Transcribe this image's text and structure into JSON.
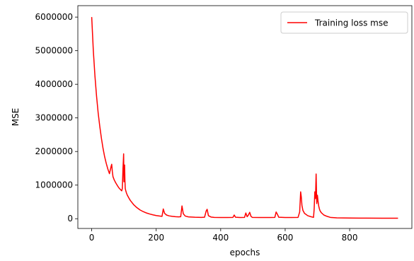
{
  "chart_data": {
    "type": "line",
    "title": "",
    "xlabel": "epochs",
    "ylabel": "MSE",
    "xlim": [
      -43,
      993
    ],
    "ylim": [
      -290000,
      6340000
    ],
    "grid": false,
    "legend": {
      "placement": "top-right",
      "entries": [
        "Training loss mse"
      ]
    },
    "x_ticks": [
      0,
      200,
      400,
      600,
      800
    ],
    "x_tick_labels": [
      "0",
      "200",
      "400",
      "600",
      "800"
    ],
    "y_ticks": [
      0,
      1000000,
      2000000,
      3000000,
      4000000,
      5000000,
      6000000
    ],
    "y_tick_labels": [
      "0",
      "1000000",
      "2000000",
      "3000000",
      "4000000",
      "5000000",
      "6000000"
    ],
    "series": [
      {
        "name": "Training loss mse",
        "color": "#ff0000",
        "x": [
          0,
          5,
          10,
          15,
          20,
          25,
          30,
          35,
          40,
          45,
          50,
          55,
          60,
          62,
          64,
          66,
          70,
          75,
          80,
          85,
          90,
          93,
          95,
          97,
          98,
          99,
          100,
          101,
          102,
          103,
          104,
          106,
          108,
          110,
          115,
          120,
          130,
          140,
          150,
          160,
          170,
          180,
          190,
          200,
          210,
          218,
          222,
          226,
          232,
          240,
          250,
          260,
          270,
          276,
          280,
          284,
          290,
          300,
          320,
          340,
          350,
          355,
          358,
          362,
          370,
          380,
          400,
          420,
          438,
          442,
          446,
          460,
          474,
          478,
          482,
          486,
          490,
          494,
          498,
          520,
          550,
          568,
          572,
          576,
          580,
          600,
          620,
          640,
          645,
          648,
          650,
          652,
          655,
          660,
          670,
          680,
          688,
          690,
          692,
          694,
          696,
          698,
          700,
          702,
          704,
          706,
          708,
          712,
          720,
          730,
          740,
          760,
          800,
          850,
          900,
          950
        ],
        "y": [
          6000000,
          5000000,
          4250000,
          3650000,
          3150000,
          2750000,
          2400000,
          2100000,
          1850000,
          1650000,
          1480000,
          1340000,
          1550000,
          1620000,
          1400000,
          1250000,
          1150000,
          1060000,
          980000,
          910000,
          860000,
          830000,
          900000,
          1500000,
          1700000,
          1930000,
          1100000,
          1450000,
          1600000,
          1150000,
          900000,
          820000,
          760000,
          710000,
          620000,
          540000,
          420000,
          330000,
          260000,
          210000,
          170000,
          140000,
          115000,
          95000,
          80000,
          70000,
          290000,
          160000,
          110000,
          85000,
          70000,
          60000,
          55000,
          60000,
          380000,
          150000,
          80000,
          55000,
          45000,
          40000,
          45000,
          230000,
          280000,
          90000,
          50000,
          40000,
          35000,
          35000,
          40000,
          110000,
          45000,
          35000,
          40000,
          170000,
          60000,
          110000,
          190000,
          70000,
          40000,
          35000,
          35000,
          40000,
          200000,
          130000,
          45000,
          35000,
          35000,
          40000,
          200000,
          800000,
          650000,
          400000,
          250000,
          160000,
          90000,
          60000,
          40000,
          300000,
          800000,
          600000,
          1330000,
          450000,
          700000,
          520000,
          380000,
          300000,
          240000,
          180000,
          110000,
          70000,
          40000,
          25000,
          20000,
          18000,
          16000,
          15000
        ]
      }
    ]
  }
}
